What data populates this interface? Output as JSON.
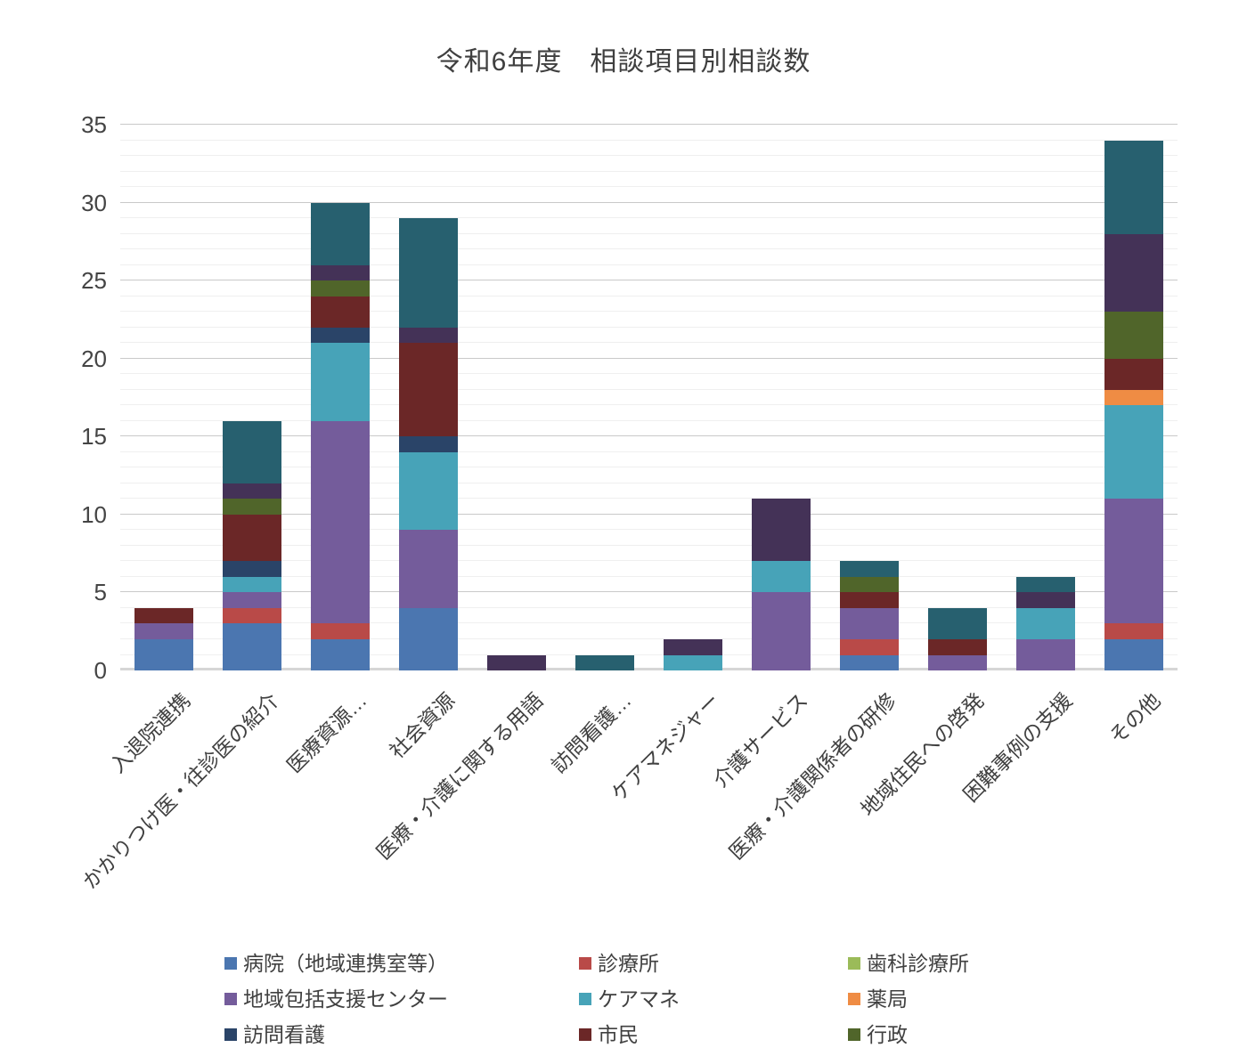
{
  "title": "令和6年度　相談項目別相談数",
  "y_axis": {
    "ticks": [
      0,
      5,
      10,
      15,
      20,
      25,
      30,
      35
    ],
    "max": 35
  },
  "legend": {
    "items": [
      {
        "label": "病院（地域連携室等）",
        "color": "#4b76b0"
      },
      {
        "label": "診療所",
        "color": "#b94a48"
      },
      {
        "label": "歯科診療所",
        "color": "#9bbb59"
      },
      {
        "label": "地域包括支援センター",
        "color": "#745c9b"
      },
      {
        "label": "ケアマネ",
        "color": "#47a3b8"
      },
      {
        "label": "薬局",
        "color": "#ef8c44"
      },
      {
        "label": "訪問看護",
        "color": "#2a4468"
      },
      {
        "label": "市民",
        "color": "#6b2727"
      },
      {
        "label": "行政",
        "color": "#50652a"
      }
    ]
  },
  "chart_data": {
    "type": "bar",
    "subtype": "stacked-vertical",
    "title": "令和6年度　相談項目別相談数",
    "xlabel": "",
    "ylabel": "",
    "ylim": [
      0,
      35
    ],
    "yticks": [
      0,
      5,
      10,
      15,
      20,
      25,
      30,
      35
    ],
    "grid": "horizontal, minor every 1 (light), major every 5 (darker)",
    "legend_position": "bottom (3 columns, 9 labeled entries visible; two additional plotted series have no visible legend label)",
    "categories": [
      "入退院連携",
      "かかりつけ医・往診医の紹介",
      "医療資源…",
      "社会資源",
      "医療・介護に関する用語",
      "訪問看護…",
      "ケアマネジャー",
      "介護サービス",
      "医療・介護関係者の研修",
      "地域住民への啓発",
      "困難事例の支援",
      "その他"
    ],
    "category_totals": [
      4,
      16,
      30,
      29,
      1,
      1,
      2,
      11,
      7,
      4,
      6,
      34
    ],
    "series": [
      {
        "name": "病院（地域連携室等）",
        "color": "#4b76b0",
        "in_visible_legend": true,
        "values": [
          2,
          3,
          2,
          4,
          0,
          0,
          0,
          0,
          1,
          0,
          0,
          2
        ]
      },
      {
        "name": "診療所",
        "color": "#b94a48",
        "in_visible_legend": true,
        "values": [
          0,
          1,
          1,
          0,
          0,
          0,
          0,
          0,
          1,
          0,
          0,
          1
        ]
      },
      {
        "name": "歯科診療所",
        "color": "#9bbb59",
        "in_visible_legend": true,
        "values": [
          0,
          0,
          0,
          0,
          0,
          0,
          0,
          0,
          0,
          0,
          0,
          0
        ]
      },
      {
        "name": "地域包括支援センター",
        "color": "#745c9b",
        "in_visible_legend": true,
        "values": [
          1,
          1,
          13,
          5,
          0,
          0,
          0,
          5,
          2,
          1,
          2,
          8
        ]
      },
      {
        "name": "ケアマネ",
        "color": "#47a3b8",
        "in_visible_legend": true,
        "values": [
          0,
          1,
          5,
          5,
          0,
          0,
          1,
          2,
          0,
          0,
          2,
          6
        ]
      },
      {
        "name": "薬局",
        "color": "#ef8c44",
        "in_visible_legend": true,
        "values": [
          0,
          0,
          0,
          0,
          0,
          0,
          0,
          0,
          0,
          0,
          0,
          1
        ]
      },
      {
        "name": "訪問看護",
        "color": "#2a4468",
        "in_visible_legend": true,
        "values": [
          0,
          1,
          1,
          1,
          0,
          0,
          0,
          0,
          0,
          0,
          0,
          0
        ]
      },
      {
        "name": "市民",
        "color": "#6b2727",
        "in_visible_legend": true,
        "values": [
          1,
          3,
          2,
          6,
          0,
          0,
          0,
          0,
          1,
          1,
          0,
          2
        ]
      },
      {
        "name": "行政",
        "color": "#50652a",
        "in_visible_legend": true,
        "values": [
          0,
          1,
          1,
          0,
          0,
          0,
          0,
          0,
          1,
          0,
          0,
          3
        ]
      },
      {
        "name": "",
        "color": "#443257",
        "in_visible_legend": false,
        "values": [
          0,
          1,
          1,
          1,
          1,
          0,
          1,
          4,
          0,
          0,
          1,
          5
        ]
      },
      {
        "name": "",
        "color": "#27606f",
        "in_visible_legend": false,
        "values": [
          0,
          4,
          4,
          7,
          0,
          1,
          0,
          0,
          1,
          2,
          1,
          6
        ]
      }
    ]
  }
}
